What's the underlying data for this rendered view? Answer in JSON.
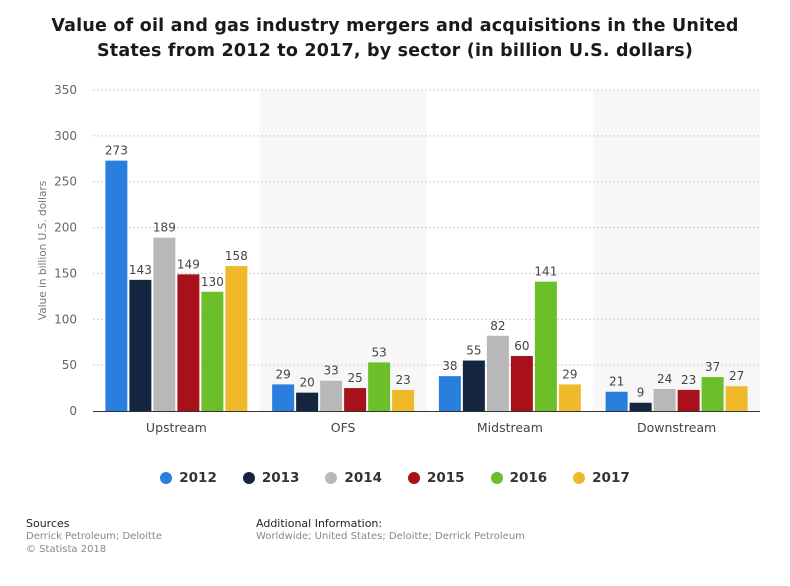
{
  "chart_data": {
    "type": "bar",
    "title": "Value of oil and gas industry mergers and acquisitions in the United States from 2012 to 2017, by sector (in billion U.S. dollars)",
    "ylabel": "Value in billion U.S. dollars",
    "xlabel": "",
    "ylim": [
      0,
      350
    ],
    "yticks": [
      0,
      50,
      100,
      150,
      200,
      250,
      300,
      350
    ],
    "grid": true,
    "legend_position": "bottom",
    "categories": [
      "Upstream",
      "OFS",
      "Midstream",
      "Downstream"
    ],
    "series": [
      {
        "name": "2012",
        "color": "#2a7fde",
        "values": [
          273,
          29,
          38,
          21
        ]
      },
      {
        "name": "2013",
        "color": "#13253f",
        "values": [
          143,
          20,
          55,
          9
        ]
      },
      {
        "name": "2014",
        "color": "#b8b8b8",
        "values": [
          189,
          33,
          82,
          24
        ]
      },
      {
        "name": "2015",
        "color": "#a8101a",
        "values": [
          149,
          25,
          60,
          23
        ]
      },
      {
        "name": "2016",
        "color": "#6dbf2a",
        "values": [
          130,
          53,
          141,
          37
        ]
      },
      {
        "name": "2017",
        "color": "#f0b92a",
        "values": [
          158,
          23,
          29,
          27
        ]
      }
    ]
  },
  "footer": {
    "sources_heading": "Sources",
    "sources_line1": "Derrick Petroleum; Deloitte",
    "sources_line2": "© Statista 2018",
    "info_heading": "Additional Information:",
    "info_line1": "Worldwide; United States; Deloitte; Derrick Petroleum"
  }
}
